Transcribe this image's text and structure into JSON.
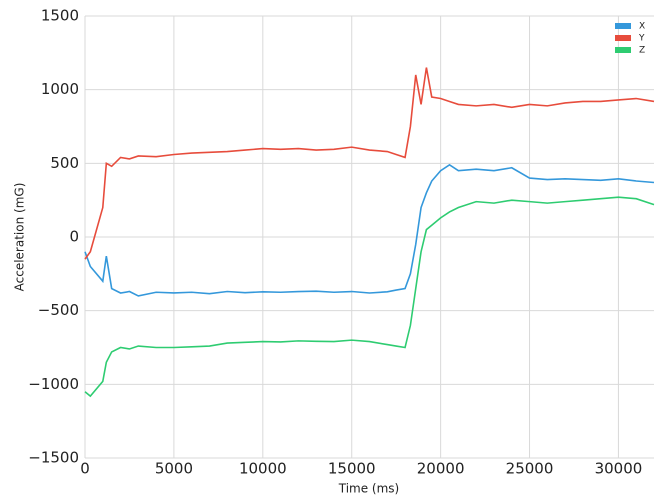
{
  "chart_data": {
    "type": "line",
    "x_label": "Time (ms)",
    "y_label": "Acceleration (mG)",
    "x": [
      0,
      300,
      1000,
      1200,
      1500,
      2000,
      2500,
      3000,
      4000,
      5000,
      6000,
      7000,
      8000,
      9000,
      10000,
      11000,
      12000,
      13000,
      14000,
      15000,
      16000,
      17000,
      17500,
      18000,
      18300,
      18600,
      18900,
      19200,
      19500,
      20000,
      20500,
      21000,
      22000,
      23000,
      24000,
      25000,
      26000,
      27000,
      28000,
      29000,
      30000,
      31000,
      32000
    ],
    "series": [
      {
        "name": "X",
        "color": "#3498db",
        "values": [
          -100,
          -200,
          -300,
          -130,
          -350,
          -380,
          -370,
          -400,
          -375,
          -380,
          -375,
          -385,
          -370,
          -378,
          -372,
          -375,
          -370,
          -368,
          -375,
          -370,
          -380,
          -372,
          -360,
          -350,
          -250,
          -50,
          200,
          300,
          380,
          450,
          490,
          450,
          460,
          450,
          470,
          400,
          390,
          395,
          390,
          385,
          395,
          380,
          370
        ]
      },
      {
        "name": "Y",
        "color": "#e74c3c",
        "values": [
          -150,
          -100,
          200,
          500,
          480,
          540,
          530,
          550,
          545,
          560,
          570,
          575,
          580,
          590,
          600,
          595,
          600,
          590,
          595,
          610,
          590,
          580,
          560,
          540,
          750,
          1100,
          900,
          1150,
          950,
          940,
          920,
          900,
          890,
          900,
          880,
          900,
          890,
          910,
          920,
          920,
          930,
          940,
          920
        ]
      },
      {
        "name": "Z",
        "color": "#2ecc71",
        "values": [
          -1050,
          -1080,
          -980,
          -850,
          -780,
          -750,
          -760,
          -740,
          -750,
          -750,
          -745,
          -740,
          -720,
          -715,
          -710,
          -712,
          -705,
          -708,
          -710,
          -700,
          -710,
          -730,
          -740,
          -750,
          -600,
          -350,
          -100,
          50,
          80,
          130,
          170,
          200,
          240,
          230,
          250,
          240,
          230,
          240,
          250,
          260,
          270,
          260,
          220
        ]
      }
    ],
    "xlim": [
      0,
      32000
    ],
    "ylim": [
      -1500,
      1500
    ],
    "xticks": [
      0,
      5000,
      10000,
      15000,
      20000,
      25000,
      30000
    ],
    "yticks": [
      {
        "value": -1500,
        "label": "−1500"
      },
      {
        "value": -1000,
        "label": "−1000"
      },
      {
        "value": -500,
        "label": "−500"
      },
      0,
      500,
      1000,
      1500
    ],
    "grid": true,
    "legend": "upper right"
  }
}
